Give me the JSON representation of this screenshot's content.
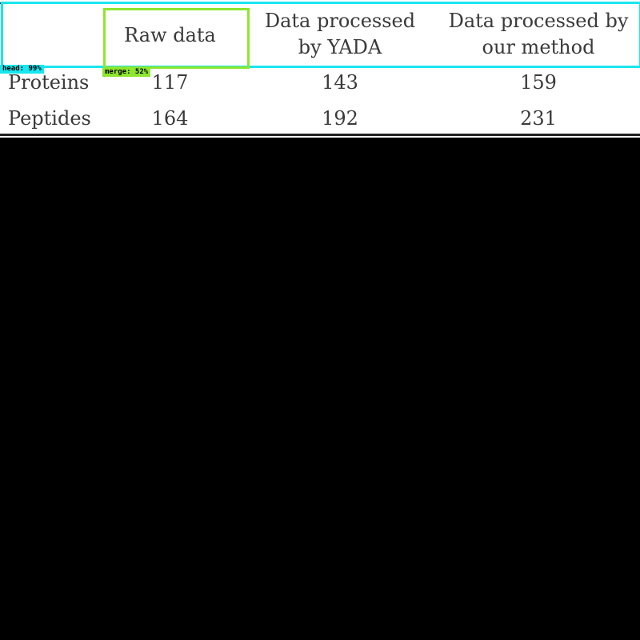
{
  "table": {
    "header": {
      "row_label": "",
      "raw": "Raw data",
      "yada_line1": "Data processed",
      "yada_line2": "by YADA",
      "ours_line1": "Data processed by",
      "ours_line2": "our method"
    },
    "rows": [
      {
        "label": "Proteins",
        "raw": "117",
        "yada": "143",
        "ours": "159"
      },
      {
        "label": "Peptides",
        "raw": "164",
        "yada": "192",
        "ours": "231"
      }
    ]
  },
  "overlays": {
    "head": {
      "label": "head: 99%",
      "color": "#19e6ef"
    },
    "merge": {
      "label": "merge: 52%",
      "color": "#8ee62e"
    }
  }
}
